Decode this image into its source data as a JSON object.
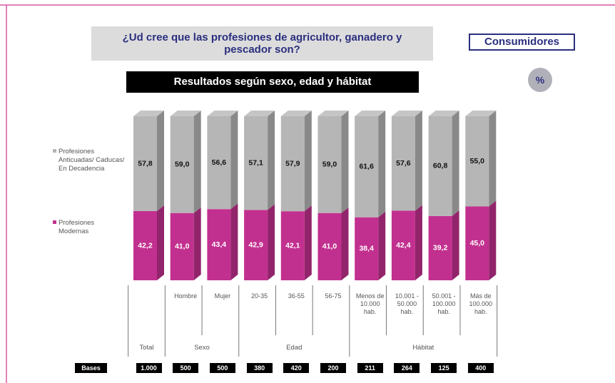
{
  "chart_data": {
    "type": "stacked_bar",
    "title": "¿Ud cree que las profesiones de agricultor, ganadero y pescador son?",
    "badge": "Consumidores",
    "unit_badge": "%",
    "subtitle": "Resultados según sexo, edad y hábitat",
    "categories": [
      null,
      "Hombre",
      "Mujer",
      "20-35",
      "36-55",
      "56-75",
      "Menos de 10.000 hab.",
      "10.001 - 50.000 hab.",
      "50.001 - 100.000 hab.",
      "Más de 100.000 hab."
    ],
    "groups": [
      {
        "label": "Total",
        "count": 1
      },
      {
        "label": "Sexo",
        "count": 2
      },
      {
        "label": "Edad",
        "count": 3
      },
      {
        "label": "Hábitat",
        "count": 4
      }
    ],
    "ylim": [
      0,
      100
    ],
    "series": [
      {
        "name": "Profesiones Modernas",
        "color": "#c2308f",
        "values": [
          42.2,
          41.0,
          43.4,
          42.9,
          42.1,
          41.0,
          38.4,
          42.4,
          39.2,
          45.0
        ],
        "value_labels": [
          "42,2",
          "41,0",
          "43,4",
          "42,9",
          "42,1",
          "41,0",
          "38,4",
          "42,4",
          "39,2",
          "45,0"
        ]
      },
      {
        "name": "Profesiones Anticuadas/ Caducas/ En Decadencia",
        "color": "#b6b6b6",
        "values": [
          57.8,
          59.0,
          56.6,
          57.1,
          57.9,
          59.0,
          61.6,
          57.6,
          60.8,
          55.0
        ],
        "value_labels": [
          "57,8",
          "59,0",
          "56,6",
          "57,1",
          "57,9",
          "59,0",
          "61,6",
          "57,6",
          "60,8",
          "55,0"
        ]
      }
    ],
    "bases_label": "Bases",
    "bases": [
      "1.000",
      "500",
      "500",
      "380",
      "420",
      "200",
      "211",
      "264",
      "125",
      "400"
    ]
  }
}
